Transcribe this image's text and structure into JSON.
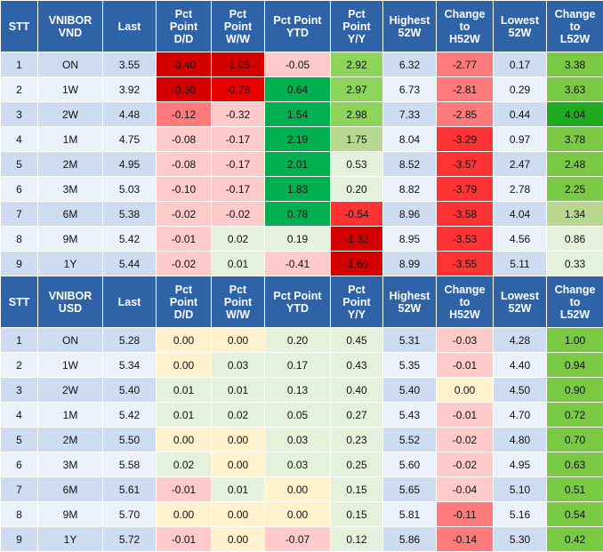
{
  "colors": {
    "header_bg": "#2e63a8",
    "row_light": "#eaf1fb",
    "row_dark": "#cddcf0"
  },
  "tables": [
    {
      "headers": [
        [
          "STT"
        ],
        [
          "VNIBOR",
          "VND"
        ],
        [
          "Last"
        ],
        [
          "Pct",
          "Point",
          "D/D"
        ],
        [
          "Pct",
          "Point",
          "W/W"
        ],
        [
          "Pct Point",
          "YTD"
        ],
        [
          "Pct",
          "Point",
          "Y/Y"
        ],
        [
          "Highest",
          "52W"
        ],
        [
          "Change",
          "to",
          "H52W"
        ],
        [
          "Lowest",
          "52W"
        ],
        [
          "Change",
          "to",
          "L52W"
        ]
      ],
      "rows": [
        {
          "cells": [
            "1",
            "ON",
            "3.55",
            "-0.40",
            "-1.05",
            "-0.05",
            "2.92",
            "6.32",
            "-2.77",
            "0.17",
            "3.38"
          ],
          "fills": [
            "",
            "",
            "",
            "#d40000",
            "#d40000",
            "#ffcaca",
            "#8dd45a",
            "",
            "#ff7b7b",
            "",
            "#7ac943"
          ]
        },
        {
          "cells": [
            "2",
            "1W",
            "3.92",
            "-0.30",
            "-0.78",
            "0.64",
            "2.97",
            "6.73",
            "-2.81",
            "0.29",
            "3.63"
          ],
          "fills": [
            "",
            "",
            "",
            "#d40000",
            "#e60000",
            "#00b050",
            "#8dd45a",
            "",
            "#ff7b7b",
            "",
            "#7ac943"
          ]
        },
        {
          "cells": [
            "3",
            "2W",
            "4.48",
            "-0.12",
            "-0.32",
            "1.54",
            "2.98",
            "7.33",
            "-2.85",
            "0.44",
            "4.04"
          ],
          "fills": [
            "",
            "",
            "",
            "#ff7b7b",
            "#ffcaca",
            "#00b050",
            "#8dd45a",
            "",
            "#ff7b7b",
            "",
            "#1fab1f"
          ]
        },
        {
          "cells": [
            "4",
            "1M",
            "4.75",
            "-0.08",
            "-0.17",
            "2.19",
            "1.75",
            "8.04",
            "-3.29",
            "0.97",
            "3.78"
          ],
          "fills": [
            "",
            "",
            "",
            "#ffcaca",
            "#ffcaca",
            "#00b050",
            "#b6d98f",
            "",
            "#ff3333",
            "",
            "#7ac943"
          ]
        },
        {
          "cells": [
            "5",
            "2M",
            "4.95",
            "-0.08",
            "-0.17",
            "2.01",
            "0.53",
            "8.52",
            "-3.57",
            "2.47",
            "2.48"
          ],
          "fills": [
            "",
            "",
            "",
            "#ffcaca",
            "#ffcaca",
            "#00b050",
            "#e5f1da",
            "",
            "#ff3333",
            "",
            "#7ac943"
          ]
        },
        {
          "cells": [
            "6",
            "3M",
            "5.03",
            "-0.10",
            "-0.17",
            "1.83",
            "0.20",
            "8.82",
            "-3.79",
            "2.78",
            "2.25"
          ],
          "fills": [
            "",
            "",
            "",
            "#ffcaca",
            "#ffcaca",
            "#00b050",
            "#e5f1da",
            "",
            "#ff3333",
            "",
            "#7ac943"
          ]
        },
        {
          "cells": [
            "7",
            "6M",
            "5.38",
            "-0.02",
            "-0.02",
            "0.78",
            "-0.54",
            "8.96",
            "-3.58",
            "4.04",
            "1.34"
          ],
          "fills": [
            "",
            "",
            "",
            "#ffcaca",
            "#ffcaca",
            "#00b050",
            "#ff3333",
            "",
            "#ff3333",
            "",
            "#b6d98f"
          ]
        },
        {
          "cells": [
            "8",
            "9M",
            "5.42",
            "-0.01",
            "0.02",
            "0.19",
            "-1.32",
            "8.95",
            "-3.53",
            "4.56",
            "0.86"
          ],
          "fills": [
            "",
            "",
            "",
            "#ffcaca",
            "#e5f1da",
            "#e5f1da",
            "#d40000",
            "",
            "#ff3333",
            "",
            "#e5f1da"
          ]
        },
        {
          "cells": [
            "9",
            "1Y",
            "5.44",
            "-0.02",
            "0.01",
            "-0.41",
            "-1.69",
            "8.99",
            "-3.55",
            "5.11",
            "0.33"
          ],
          "fills": [
            "",
            "",
            "",
            "#ffcaca",
            "#e5f1da",
            "#ffcaca",
            "#d40000",
            "",
            "#ff3333",
            "",
            "#e5f1da"
          ]
        }
      ]
    },
    {
      "headers": [
        [
          "STT"
        ],
        [
          "VNIBOR",
          "USD"
        ],
        [
          "Last"
        ],
        [
          "Pct",
          "Point",
          "D/D"
        ],
        [
          "Pct",
          "Point",
          "W/W"
        ],
        [
          "Pct Point",
          "YTD"
        ],
        [
          "Pct",
          "Point",
          "Y/Y"
        ],
        [
          "Highest",
          "52W"
        ],
        [
          "Change",
          "to",
          "H52W"
        ],
        [
          "Lowest",
          "52W"
        ],
        [
          "Change",
          "to",
          "L52W"
        ]
      ],
      "rows": [
        {
          "cells": [
            "1",
            "ON",
            "5.28",
            "0.00",
            "0.00",
            "0.20",
            "0.45",
            "5.31",
            "-0.03",
            "4.28",
            "1.00"
          ],
          "fills": [
            "",
            "",
            "",
            "#fff2cc",
            "#fff2cc",
            "#e5f1da",
            "#e5f1da",
            "",
            "#ffcaca",
            "",
            "#7ac943"
          ]
        },
        {
          "cells": [
            "2",
            "1W",
            "5.34",
            "0.00",
            "0.03",
            "0.17",
            "0.43",
            "5.35",
            "-0.01",
            "4.40",
            "0.94"
          ],
          "fills": [
            "",
            "",
            "",
            "#fff2cc",
            "#e5f1da",
            "#e5f1da",
            "#e5f1da",
            "",
            "#ffcaca",
            "",
            "#7ac943"
          ]
        },
        {
          "cells": [
            "3",
            "2W",
            "5.40",
            "0.01",
            "0.01",
            "0.13",
            "0.40",
            "5.40",
            "0.00",
            "4.50",
            "0.90"
          ],
          "fills": [
            "",
            "",
            "",
            "#e5f1da",
            "#e5f1da",
            "#e5f1da",
            "#e5f1da",
            "",
            "#fff2cc",
            "",
            "#7ac943"
          ]
        },
        {
          "cells": [
            "4",
            "1M",
            "5.42",
            "0.01",
            "0.02",
            "0.05",
            "0.27",
            "5.43",
            "-0.01",
            "4.70",
            "0.72"
          ],
          "fills": [
            "",
            "",
            "",
            "#e5f1da",
            "#e5f1da",
            "#e5f1da",
            "#e5f1da",
            "",
            "#ffcaca",
            "",
            "#7ac943"
          ]
        },
        {
          "cells": [
            "5",
            "2M",
            "5.50",
            "0.00",
            "0.00",
            "0.03",
            "0.23",
            "5.52",
            "-0.02",
            "4.80",
            "0.70"
          ],
          "fills": [
            "",
            "",
            "",
            "#fff2cc",
            "#fff2cc",
            "#e5f1da",
            "#e5f1da",
            "",
            "#ffcaca",
            "",
            "#7ac943"
          ]
        },
        {
          "cells": [
            "6",
            "3M",
            "5.58",
            "0.02",
            "0.00",
            "0.03",
            "0.25",
            "5.60",
            "-0.02",
            "4.95",
            "0.63"
          ],
          "fills": [
            "",
            "",
            "",
            "#e5f1da",
            "#fff2cc",
            "#e5f1da",
            "#e5f1da",
            "",
            "#ffcaca",
            "",
            "#7ac943"
          ]
        },
        {
          "cells": [
            "7",
            "6M",
            "5.61",
            "-0.01",
            "0.01",
            "0.00",
            "0.15",
            "5.65",
            "-0.04",
            "5.10",
            "0.51"
          ],
          "fills": [
            "",
            "",
            "",
            "#ffcaca",
            "#e5f1da",
            "#fff2cc",
            "#e5f1da",
            "",
            "#ffcaca",
            "",
            "#7ac943"
          ]
        },
        {
          "cells": [
            "8",
            "9M",
            "5.70",
            "0.00",
            "0.00",
            "0.00",
            "0.15",
            "5.81",
            "-0.11",
            "5.16",
            "0.54"
          ],
          "fills": [
            "",
            "",
            "",
            "#fff2cc",
            "#fff2cc",
            "#fff2cc",
            "#e5f1da",
            "",
            "#ff7b7b",
            "",
            "#7ac943"
          ]
        },
        {
          "cells": [
            "9",
            "1Y",
            "5.72",
            "-0.01",
            "0.00",
            "-0.07",
            "0.12",
            "5.86",
            "-0.14",
            "5.30",
            "0.42"
          ],
          "fills": [
            "",
            "",
            "",
            "#ffcaca",
            "#fff2cc",
            "#ffcaca",
            "#e5f1da",
            "",
            "#ff7b7b",
            "",
            "#7ac943"
          ]
        }
      ]
    }
  ]
}
